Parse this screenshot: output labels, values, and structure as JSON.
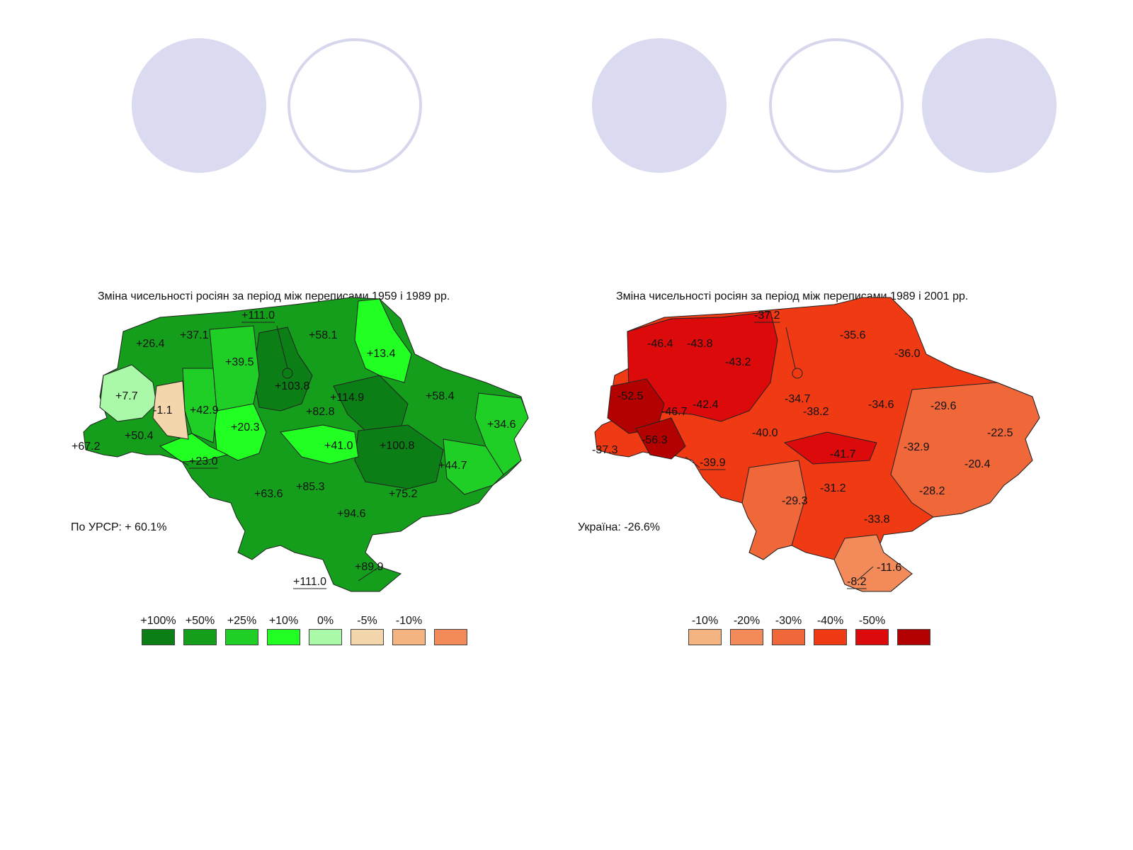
{
  "left_map": {
    "title": "Зміна чисельності росіян за період  між переписами 1959 і 1989 рр.",
    "total": "По УРСР: + 60.1%",
    "labels": [
      "+26.4",
      "+37.1",
      "+111.0",
      "+58.1",
      "+13.4",
      "+39.5",
      "+103.8",
      "+7.7",
      "-1.1",
      "+42.9",
      "+114.9",
      "+58.4",
      "+82.8",
      "+34.6",
      "+20.3",
      "+50.4",
      "+67.2",
      "+41.0",
      "+100.8",
      "+23.0",
      "+44.7",
      "+85.3",
      "+63.6",
      "+75.2",
      "+94.6",
      "+89.9",
      "+111.0"
    ],
    "legend": [
      {
        "label": "+100%",
        "color": "#0b7f16"
      },
      {
        "label": "+50%",
        "color": "#149e1c"
      },
      {
        "label": "+25%",
        "color": "#1fcf25"
      },
      {
        "label": "+10%",
        "color": "#22ff22"
      },
      {
        "label": "0%",
        "color": "#a9f9a9"
      },
      {
        "label": "-5%",
        "color": "#f4d6ad"
      },
      {
        "label": "-10%",
        "color": "#f3b482"
      },
      {
        "label": "",
        "color": "#f28a5a"
      }
    ]
  },
  "right_map": {
    "title": "Зміна чисельності росіян за період між переписами 1989 і 2001 рр.",
    "total": "Україна: -26.6%",
    "labels": [
      "-37.2",
      "-35.6",
      "-46.4",
      "-43.8",
      "-43.2",
      "-36.0",
      "-34.7",
      "-52.5",
      "-46.7",
      "-42.4",
      "-38.2",
      "-34.6",
      "-29.6",
      "-22.5",
      "-40.0",
      "-56.3",
      "-37.3",
      "-41.7",
      "-32.9",
      "-39.9",
      "-20.4",
      "-31.2",
      "-28.2",
      "-29.3",
      "-33.8",
      "-11.6",
      "-8.2"
    ],
    "legend": [
      {
        "label": "-10%",
        "color": "#f3b482"
      },
      {
        "label": "-20%",
        "color": "#f28a5a"
      },
      {
        "label": "-30%",
        "color": "#f0683a"
      },
      {
        "label": "-40%",
        "color": "#ef3a14"
      },
      {
        "label": "-50%",
        "color": "#dc0a0a"
      },
      {
        "label": "",
        "color": "#b30000"
      }
    ]
  }
}
